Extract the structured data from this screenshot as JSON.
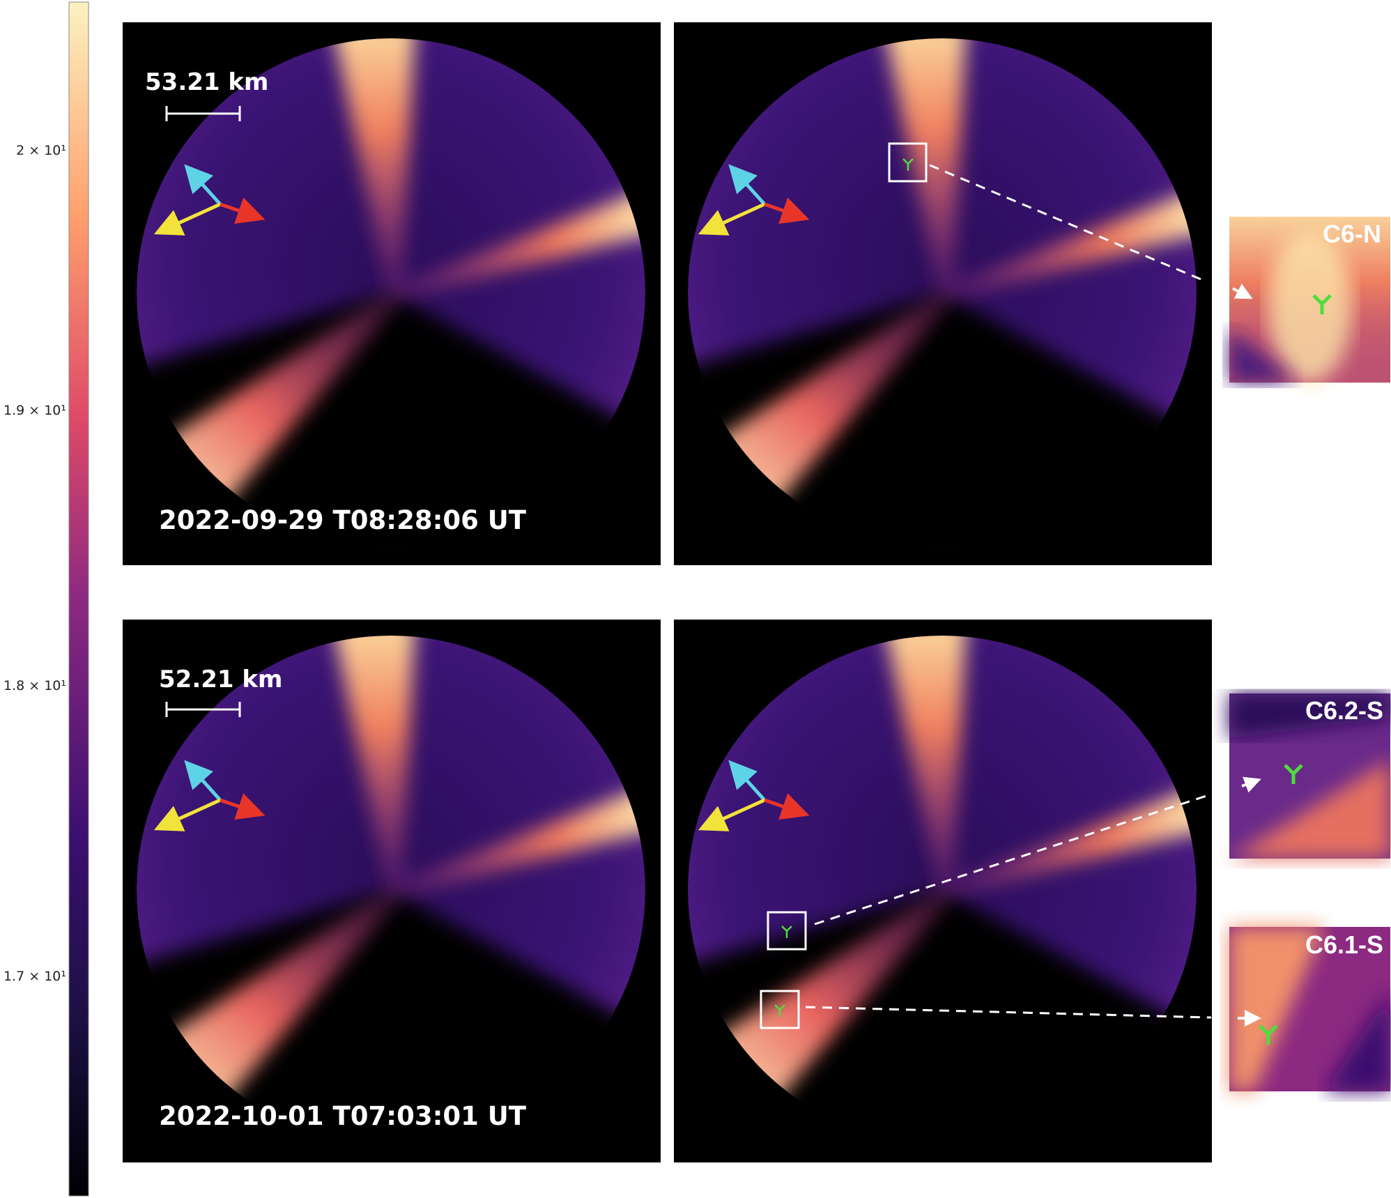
{
  "colorbar": {
    "colormap": "magma",
    "scale": "log",
    "ticks": [
      "2 × 10¹",
      "1.9 × 10¹",
      "1.8 × 10¹",
      "1.7 × 10¹"
    ],
    "tick_values": [
      20,
      19,
      18,
      17
    ]
  },
  "rows": [
    {
      "scale_label": "53.21 km",
      "timestamp": "2022-09-29 T08:28:06 UT"
    },
    {
      "scale_label": "52.21 km",
      "timestamp": "2022-10-01 T07:03:01 UT"
    }
  ],
  "insets": [
    {
      "label": "C6-N"
    },
    {
      "label": "C6.2-S"
    },
    {
      "label": "C6.1-S"
    }
  ],
  "colors": {
    "arrow_cyan": "#5fd3e6",
    "arrow_yellow": "#f2e33a",
    "arrow_red": "#e8352a",
    "marker_green": "#4cde3a"
  }
}
